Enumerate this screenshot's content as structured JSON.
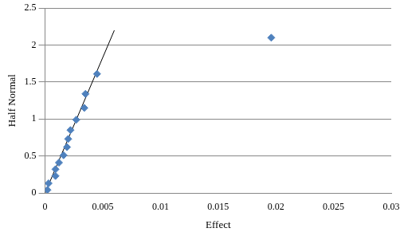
{
  "chart_data": {
    "type": "scatter",
    "x_label": "Effect",
    "y_label": "Half Normal",
    "xlim": [
      0,
      0.03
    ],
    "xticks": [
      0,
      0.005,
      0.01,
      0.015,
      0.02,
      0.025,
      0.03
    ],
    "ylim": [
      0,
      2.5
    ],
    "yticks": [
      0,
      0.5,
      1,
      1.5,
      2,
      2.5
    ],
    "grid": "y",
    "series": [
      {
        "type": "scatter",
        "color": "#4f81bd",
        "marker": "diamond",
        "x": [
          0.0002,
          0.0003,
          0.0009,
          0.0009,
          0.0012,
          0.0016,
          0.0019,
          0.002,
          0.0022,
          0.0027,
          0.0034,
          0.0035,
          0.0045,
          0.0196
        ],
        "values": [
          0.04,
          0.13,
          0.23,
          0.32,
          0.41,
          0.51,
          0.62,
          0.73,
          0.85,
          0.99,
          1.15,
          1.34,
          1.61,
          2.1
        ]
      },
      {
        "type": "line",
        "color": "#000000",
        "line_style": "solid",
        "x": [
          0,
          0.006
        ],
        "values": [
          0,
          2.2
        ]
      }
    ]
  }
}
